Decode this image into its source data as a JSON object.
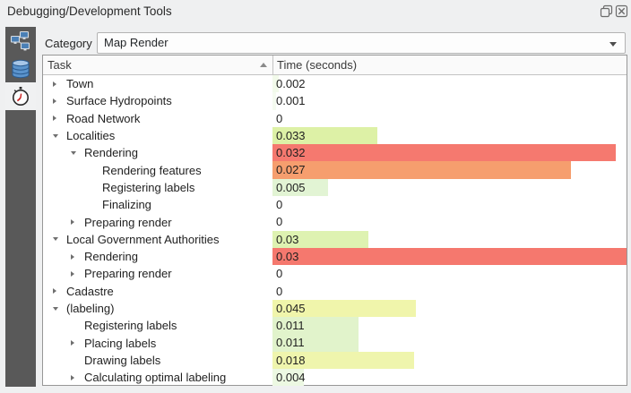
{
  "window": {
    "title": "Debugging/Development Tools",
    "controls": [
      {
        "name": "float-window-button",
        "icon": "float-icon"
      },
      {
        "name": "close-button",
        "icon": "close-icon"
      }
    ]
  },
  "sidebar": {
    "tabs": [
      {
        "id": "query-logger",
        "icon": "network-icon",
        "selected": false
      },
      {
        "id": "database",
        "icon": "database-icon",
        "selected": false
      },
      {
        "id": "profiler",
        "icon": "stopwatch-icon",
        "selected": true
      }
    ]
  },
  "toolbar": {
    "category_label": "Category",
    "category_value": "Map Render"
  },
  "table": {
    "columns": [
      {
        "label": "Task",
        "sort": "ascending"
      },
      {
        "label": "Time (seconds)"
      }
    ],
    "rows": [
      {
        "task": "Town",
        "time": "0.002",
        "level": 0,
        "arrow": "collapsed",
        "bar_pct": 1.8,
        "bar_color": "#f2faea"
      },
      {
        "task": "Surface Hydropoints",
        "time": "0.001",
        "level": 0,
        "arrow": "collapsed",
        "bar_pct": 0.9,
        "bar_color": "#f5fbf0"
      },
      {
        "task": "Road Network",
        "time": "0",
        "level": 0,
        "arrow": "collapsed",
        "bar_pct": 0,
        "bar_color": "#ffffff"
      },
      {
        "task": "Localities",
        "time": "0.033",
        "level": 0,
        "arrow": "expanded",
        "bar_pct": 29.7,
        "bar_color": "#ddf1a6"
      },
      {
        "task": "Rendering",
        "time": "0.032",
        "level": 1,
        "arrow": "expanded",
        "bar_pct": 97.0,
        "bar_color": "#f5796f"
      },
      {
        "task": "Rendering features",
        "time": "0.027",
        "level": 2,
        "arrow": "none",
        "bar_pct": 84.4,
        "bar_color": "#f69e6e"
      },
      {
        "task": "Registering labels",
        "time": "0.005",
        "level": 2,
        "arrow": "none",
        "bar_pct": 15.6,
        "bar_color": "#e2f4d4"
      },
      {
        "task": "Finalizing",
        "time": "0",
        "level": 2,
        "arrow": "none",
        "bar_pct": 0,
        "bar_color": "#ffffff"
      },
      {
        "task": "Preparing render",
        "time": "0",
        "level": 1,
        "arrow": "collapsed",
        "bar_pct": 0,
        "bar_color": "#ffffff"
      },
      {
        "task": "Local Government Authorities",
        "time": "0.03",
        "level": 0,
        "arrow": "expanded",
        "bar_pct": 27.0,
        "bar_color": "#def2b1"
      },
      {
        "task": "Rendering",
        "time": "0.03",
        "level": 1,
        "arrow": "collapsed",
        "bar_pct": 100,
        "bar_color": "#f5786e"
      },
      {
        "task": "Preparing render",
        "time": "0",
        "level": 1,
        "arrow": "collapsed",
        "bar_pct": 0,
        "bar_color": "#ffffff"
      },
      {
        "task": "Cadastre",
        "time": "0",
        "level": 0,
        "arrow": "collapsed",
        "bar_pct": 0,
        "bar_color": "#ffffff"
      },
      {
        "task": "(labeling)",
        "time": "0.045",
        "level": 0,
        "arrow": "expanded",
        "bar_pct": 40.5,
        "bar_color": "#f0f5ab"
      },
      {
        "task": "Registering labels",
        "time": "0.011",
        "level": 1,
        "arrow": "none",
        "bar_pct": 24.4,
        "bar_color": "#e1f3cb"
      },
      {
        "task": "Placing labels",
        "time": "0.011",
        "level": 1,
        "arrow": "collapsed",
        "bar_pct": 24.4,
        "bar_color": "#e1f3cb"
      },
      {
        "task": "Drawing labels",
        "time": "0.018",
        "level": 1,
        "arrow": "none",
        "bar_pct": 40.0,
        "bar_color": "#eff5ad"
      },
      {
        "task": "Calculating optimal labeling",
        "time": "0.004",
        "level": 1,
        "arrow": "collapsed",
        "bar_pct": 8.9,
        "bar_color": "#ecf8e2"
      }
    ]
  }
}
